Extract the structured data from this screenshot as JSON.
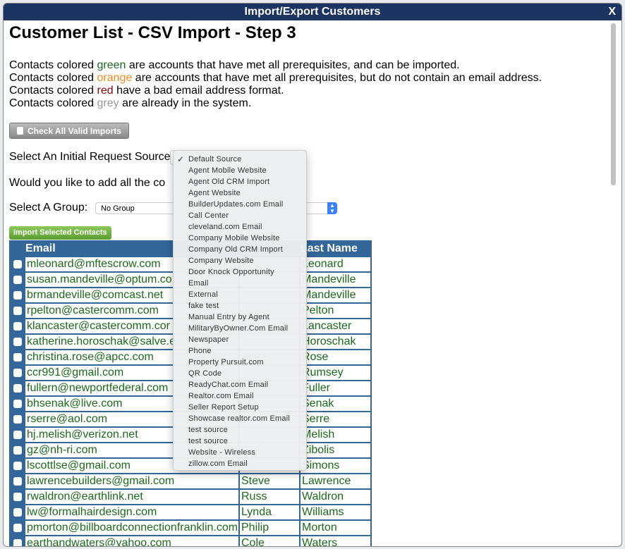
{
  "window": {
    "title": "Import/Export Customers",
    "close_label": "X"
  },
  "page": {
    "title": "Customer List - CSV Import - Step 3"
  },
  "legend": [
    {
      "pre": "Contacts colored ",
      "color_word": "green",
      "post": " are accounts that have met all prerequisites, and can be imported.",
      "color": "#1c6b1c"
    },
    {
      "pre": "Contacts colored ",
      "color_word": "orange",
      "post": " are accounts that have met all prerequisites, but do not contain an email address.",
      "color": "#f58a1f"
    },
    {
      "pre": "Contacts colored ",
      "color_word": "red",
      "post": " have a bad email address format.",
      "color": "#8b0000"
    },
    {
      "pre": "Contacts colored ",
      "color_word": "grey",
      "post": " are already in the system.",
      "color": "#999999"
    }
  ],
  "check_all_label": "Check All Valid Imports",
  "source_label": "Select An Initial Request Source",
  "add_all_label": "Would you like to add all the co",
  "group_label": "Select A Group:",
  "group_value": "No Group",
  "import_button": "Import Selected Contacts",
  "columns": [
    "Email",
    "Last Name"
  ],
  "rows": [
    {
      "email": "mleonard@mftescrow.com",
      "first": "",
      "last": "Leonard"
    },
    {
      "email": "susan.mandeville@optum.co",
      "first": "",
      "last": "Mandeville"
    },
    {
      "email": "brmandeville@comcast.net",
      "first": "",
      "last": "Mandeville"
    },
    {
      "email": "rpelton@castercomm.com",
      "first": "",
      "last": "Pelton"
    },
    {
      "email": "klancaster@castercomm.cor",
      "first": "",
      "last": "Lancaster"
    },
    {
      "email": "katherine.horoschak@salve.e",
      "first": "",
      "last": "Horoschak"
    },
    {
      "email": "christina.rose@apcc.com",
      "first": "",
      "last": "Rose"
    },
    {
      "email": "ccr991@gmail.com",
      "first": "",
      "last": "Rumsey"
    },
    {
      "email": "fullern@newportfederal.com",
      "first": "",
      "last": "Fuller"
    },
    {
      "email": "bhsenak@live.com",
      "first": "",
      "last": "Senak"
    },
    {
      "email": "rserre@aol.com",
      "first": "",
      "last": "Serre"
    },
    {
      "email": "hj.melish@verizon.net",
      "first": "",
      "last": "Melish"
    },
    {
      "email": "gz@nh-ri.com",
      "first": "",
      "last": "Zibolis"
    },
    {
      "email": "lscottlse@gmail.com",
      "first": "",
      "last": "Simons"
    },
    {
      "email": "lawrencebuilders@gmail.com",
      "first": "Steve",
      "last": "Lawrence"
    },
    {
      "email": "rwaldron@earthlink.net",
      "first": "Russ",
      "last": "Waldron"
    },
    {
      "email": "lw@formalhairdesign.com",
      "first": "Lynda",
      "last": "Williams"
    },
    {
      "email": "pmorton@billboardconnectionfranklin.com",
      "first": "Philip",
      "last": "Morton"
    },
    {
      "email": "earthandwaters@yahoo.com",
      "first": "Cole",
      "last": "Waters"
    }
  ],
  "source_options": {
    "selected": "Default Source",
    "items": [
      "Default Source",
      "Agent Mobile Website",
      "Agent Old CRM Import",
      "Agent Website",
      "BuilderUpdates.com Email",
      "Call Center",
      "cleveland.com Email",
      "Company Mobile Website",
      "Company Old CRM Import",
      "Company Website",
      "Door Knock Opportunity",
      "Email",
      "External",
      "fake test",
      "Manual Entry by Agent",
      "MilitaryByOwner.Com Email",
      "Newspaper",
      "Phone",
      "Property Pursuit.com",
      "QR Code",
      "ReadyChat.com Email",
      "Realtor.com Email",
      "Seller Report Setup",
      "Showcase realtor.com Email",
      "test source",
      "test source",
      "Website - Wireless",
      "zillow.com Email"
    ]
  },
  "colors": {
    "titlebar": "#1c3461",
    "table": "#336699",
    "valid": "#1c6b1c"
  }
}
